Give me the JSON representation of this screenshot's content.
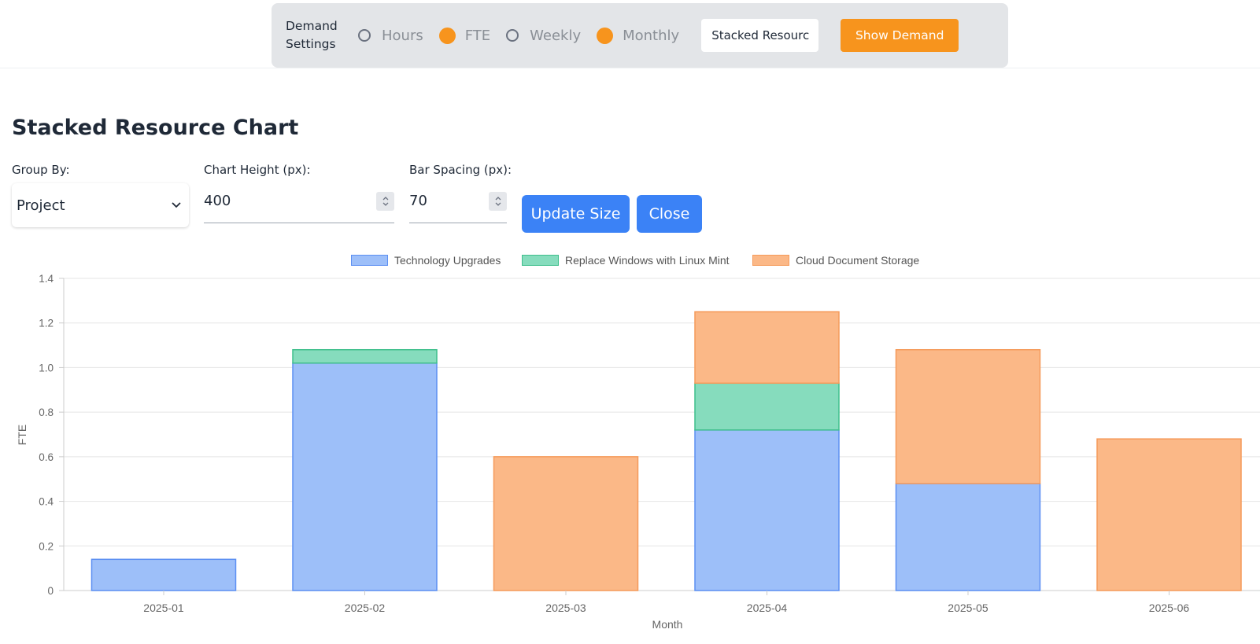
{
  "demand_settings": {
    "label_line1": "Demand",
    "label_line2": "Settings",
    "unit_options": [
      {
        "label": "Hours",
        "selected": false
      },
      {
        "label": "FTE",
        "selected": true
      }
    ],
    "period_options": [
      {
        "label": "Weekly",
        "selected": false
      },
      {
        "label": "Monthly",
        "selected": true
      }
    ],
    "view_select_value": "Stacked Resourc",
    "show_demand_label": "Show Demand",
    "accent_color": "#f7941d"
  },
  "page_title": "Stacked Resource Chart",
  "controls": {
    "group_by_label": "Group By:",
    "group_by_value": "Project",
    "chart_height_label": "Chart Height (px):",
    "chart_height_value": "400",
    "bar_spacing_label": "Bar Spacing (px):",
    "bar_spacing_value": "70",
    "update_size_label": "Update Size",
    "close_label": "Close",
    "button_color": "#3b82f6"
  },
  "chart_data": {
    "type": "bar",
    "stacked": true,
    "categories": [
      "2025-01",
      "2025-02",
      "2025-03",
      "2025-04",
      "2025-05",
      "2025-06"
    ],
    "series": [
      {
        "name": "Technology Upgrades",
        "values": [
          0.14,
          1.02,
          0,
          0.72,
          0.48,
          0
        ],
        "fill": "#9dbff9",
        "stroke": "#5c8ff2"
      },
      {
        "name": "Replace Windows with Linux Mint",
        "values": [
          0,
          0.06,
          0,
          0.21,
          0,
          0
        ],
        "fill": "#86dcbd",
        "stroke": "#3fbf8c"
      },
      {
        "name": "Cloud Document Storage",
        "values": [
          0,
          0,
          0.6,
          0.32,
          0.6,
          0.68
        ],
        "fill": "#fbb887",
        "stroke": "#f59a5a"
      }
    ],
    "xlabel": "Month",
    "ylabel": "FTE",
    "ylim": [
      0,
      1.4
    ],
    "yticks": [
      "0",
      "0.2",
      "0.4",
      "0.6",
      "0.8",
      "1.0",
      "1.2",
      "1.4"
    ],
    "grid": true,
    "legend_position": "top-center"
  }
}
